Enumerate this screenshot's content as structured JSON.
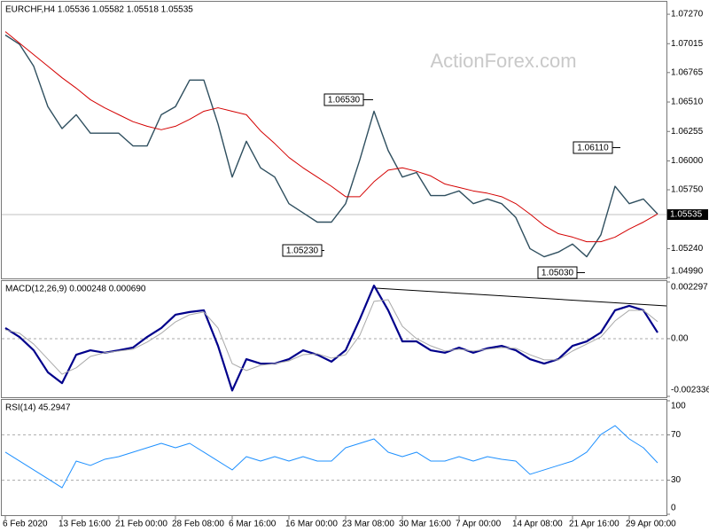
{
  "chart_data": [
    {
      "type": "line",
      "title": "EURCHF,H4 1.05536 1.05582 1.05518 1.05535",
      "watermark": "ActionForex.com",
      "categories": [
        "6 Feb 2020",
        null,
        null,
        null,
        "13 Feb 16:00",
        null,
        null,
        null,
        "21 Feb 00:00",
        null,
        null,
        null,
        "28 Feb 08:00",
        null,
        null,
        null,
        "6 Mar 16:00",
        null,
        null,
        null,
        "16 Mar 00:00",
        null,
        null,
        null,
        "23 Mar 08:00",
        null,
        null,
        null,
        "30 Mar 16:00",
        null,
        null,
        null,
        "7 Apr 00:00",
        null,
        null,
        null,
        "14 Apr 08:00",
        null,
        null,
        null,
        "21 Apr 16:00",
        null,
        null,
        null,
        "29 Apr 00:00",
        null,
        null
      ],
      "series": [
        {
          "color": "#2f4f5f",
          "values": [
            1.0709,
            1.0701,
            1.0682,
            1.0647,
            1.0628,
            1.064,
            1.0624,
            1.0624,
            1.0624,
            1.0613,
            1.0613,
            1.064,
            1.0647,
            1.067,
            1.067,
            1.0632,
            1.0586,
            1.0617,
            1.0594,
            1.0586,
            1.0563,
            1.0555,
            1.0547,
            1.0547,
            1.0563,
            1.0601,
            1.0643,
            1.0609,
            1.0586,
            1.059,
            1.057,
            1.057,
            1.0574,
            1.0563,
            1.0567,
            1.0563,
            1.0551,
            1.0524,
            1.0517,
            1.0521,
            1.0528,
            1.0517,
            1.0536,
            1.0578,
            1.0563,
            1.0567,
            1.0554
          ]
        },
        {
          "color": "#d40000",
          "values": [
            1.0712,
            1.0702,
            1.0692,
            1.0682,
            1.0672,
            1.0663,
            1.0653,
            1.0646,
            1.064,
            1.0634,
            1.063,
            1.0627,
            1.063,
            1.0636,
            1.0643,
            1.0646,
            1.0643,
            1.064,
            1.0626,
            1.0615,
            1.0603,
            1.0594,
            1.0586,
            1.0578,
            1.0569,
            1.0569,
            1.0582,
            1.0592,
            1.0594,
            1.0591,
            1.0587,
            1.058,
            1.0577,
            1.0574,
            1.0572,
            1.0569,
            1.0563,
            1.0554,
            1.0544,
            1.0537,
            1.0534,
            1.053,
            1.053,
            1.0534,
            1.0541,
            1.0547,
            1.0554
          ]
        }
      ],
      "ylim": [
        1.0499,
        1.07378
      ],
      "yticks": [
        {
          "value": 1.0727,
          "label": "1.07270"
        },
        {
          "value": 1.07015,
          "label": "1.07015"
        },
        {
          "value": 1.06765,
          "label": "1.06765"
        },
        {
          "value": 1.0651,
          "label": "1.06510"
        },
        {
          "value": 1.06255,
          "label": "1.06255"
        },
        {
          "value": 1.06,
          "label": "1.06000"
        },
        {
          "value": 1.0575,
          "label": "1.05750"
        },
        {
          "value": 1.0524,
          "label": "1.05240"
        },
        {
          "value": 1.0499,
          "label": "1.04990"
        }
      ],
      "last_price": {
        "value": 1.05535,
        "label": "1.05535"
      },
      "annotations": [
        "1.06530",
        "1.05230",
        "1.06110",
        "1.05030"
      ],
      "grid": false
    },
    {
      "type": "line",
      "title": "MACD(12,26,9) 0.000248 0.000690",
      "series": [
        {
          "color": "#00008b",
          "values": [
            0.00043,
            7e-05,
            -0.00047,
            -0.00136,
            -0.0018,
            -0.00065,
            -0.00047,
            -0.00057,
            -0.00047,
            -0.00036,
            7e-05,
            0.00043,
            0.00097,
            0.00108,
            0.00115,
            -0.00029,
            -0.0021,
            -0.00083,
            -0.00101,
            -0.00101,
            -0.00083,
            -0.00047,
            -0.00065,
            -0.00093,
            -0.00047,
            0.00079,
            0.00215,
            0.00115,
            -0.00011,
            -0.00011,
            -0.00047,
            -0.00057,
            -0.00036,
            -0.00057,
            -0.00039,
            -0.00029,
            -0.00047,
            -0.00083,
            -0.00101,
            -0.00083,
            -0.00029,
            -0.00011,
            0.00025,
            0.00115,
            0.00133,
            0.00115,
            0.000248
          ]
        },
        {
          "color": "#a9a9a9",
          "values": [
            0.00036,
            0.00022,
            -0.00022,
            -0.00083,
            -0.00144,
            -0.00118,
            -0.00072,
            -0.00057,
            -0.0005,
            -0.00043,
            -0.00014,
            0.00022,
            0.00068,
            0.00097,
            0.00108,
            0.00043,
            -0.00101,
            -0.00129,
            -0.00108,
            -0.00101,
            -0.0009,
            -0.00065,
            -0.00061,
            -0.00079,
            -0.00065,
            0.00014,
            0.00151,
            0.00158,
            0.0005,
            0,
            -0.00029,
            -0.0005,
            -0.00043,
            -0.0005,
            -0.00043,
            -0.00036,
            -0.00039,
            -0.00065,
            -0.00086,
            -0.00086,
            -0.0005,
            -0.00022,
            7e-05,
            0.00072,
            0.00115,
            0.00115,
            0.00069
          ]
        }
      ],
      "ylim": [
        -0.002336,
        0.002297
      ],
      "yticks": [
        0.002297,
        {
          "value": 0,
          "label": "0.00"
        },
        -0.002336
      ],
      "grid": true
    },
    {
      "type": "line",
      "title": "RSI(14) 45.2947",
      "series": [
        {
          "color": "#1e90ff",
          "values": [
            54.7,
            46.9,
            39.1,
            31.3,
            23.4,
            46.9,
            43,
            48.4,
            50.8,
            54.7,
            58.6,
            62.5,
            58.6,
            62.5,
            54.7,
            46.9,
            39.1,
            50.8,
            46.9,
            50.8,
            46.9,
            50.8,
            46.9,
            46.9,
            58.6,
            62.5,
            66.4,
            54.7,
            50.8,
            54.7,
            46.9,
            46.9,
            50.8,
            46.9,
            50.8,
            48.4,
            46.9,
            35.2,
            39.1,
            43,
            46.9,
            54.7,
            70.3,
            78.1,
            66.4,
            58.6,
            45.2947
          ]
        }
      ],
      "ylim": [
        0,
        100
      ],
      "yticks": [
        100,
        70,
        30,
        0
      ],
      "grid": true
    }
  ]
}
